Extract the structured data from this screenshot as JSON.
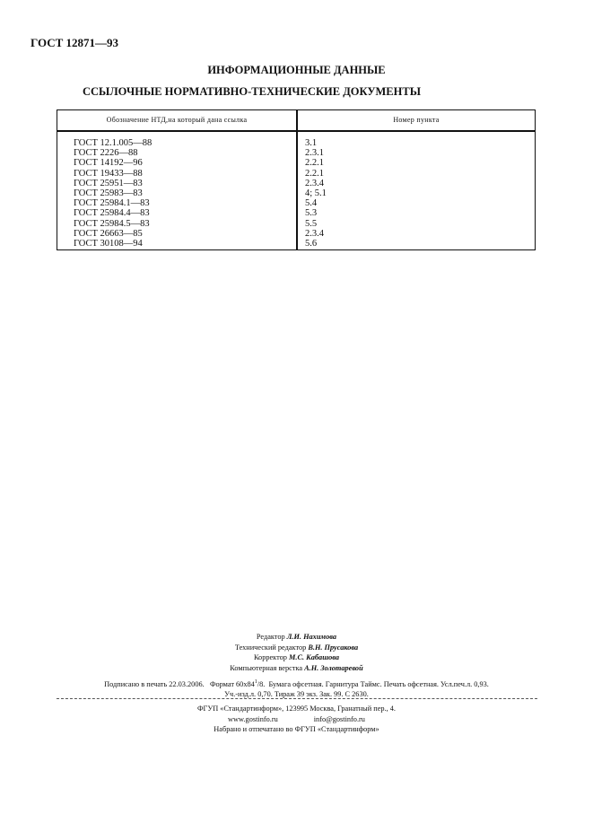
{
  "header": {
    "doc_id": "ГОСТ 12871—93"
  },
  "info_title": "ИНФОРМАЦИОННЫЕ ДАННЫЕ",
  "refs_title": "ССЫЛОЧНЫЕ НОРМАТИВНО-ТЕХНИЧЕСКИЕ ДОКУМЕНТЫ",
  "table": {
    "headers": [
      "Обозначение НТД,на который дана ссылка",
      "Номер пункта"
    ],
    "rows": [
      [
        "ГОСТ 12.1.005—88",
        "3.1"
      ],
      [
        "ГОСТ 2226—88",
        "2.3.1"
      ],
      [
        "ГОСТ 14192—96",
        "2.2.1"
      ],
      [
        "ГОСТ 19433—88",
        "2.2.1"
      ],
      [
        "ГОСТ 25951—83",
        "2.3.4"
      ],
      [
        "ГОСТ 25983—83",
        "4; 5.1"
      ],
      [
        "ГОСТ 25984.1—83",
        "5.4"
      ],
      [
        "ГОСТ 25984.4—83",
        "5.3"
      ],
      [
        "ГОСТ 25984.5—83",
        "5.5"
      ],
      [
        "ГОСТ 26663—85",
        "2.3.4"
      ],
      [
        "ГОСТ 30108—94",
        "5.6"
      ]
    ]
  },
  "credits": [
    {
      "role": "Редактор",
      "name": "Л.И. Нахимова"
    },
    {
      "role": "Технический редактор",
      "name": "В.Н. Прусакова"
    },
    {
      "role": "Корректор",
      "name": "М.С. Кабашова"
    },
    {
      "role": "Компьютерная верстка",
      "name": "А.Н. Золотаревой"
    }
  ],
  "print_info": {
    "signed": "Подписано в печать 22.03.2006.",
    "format_prefix": "Формат 60x84",
    "format_sup": "1",
    "format_sub": "/8.",
    "rest": "Бумага офсетная. Гарнитура Таймс.  Печать офсетная. Усл.печ.л. 0,93.",
    "line2": "Уч.-изд.л. 0,70. Тираж  39 экз.   Зак. 99.  С 2630."
  },
  "publisher": {
    "address": "ФГУП «Стандартинформ», 123995 Москва, Гранатный пер., 4.",
    "website": "www.gostinfo.ru",
    "email": "info@gostinfo.ru",
    "printed": "Набрано и отпечатано во ФГУП «Стандартинформ»"
  }
}
